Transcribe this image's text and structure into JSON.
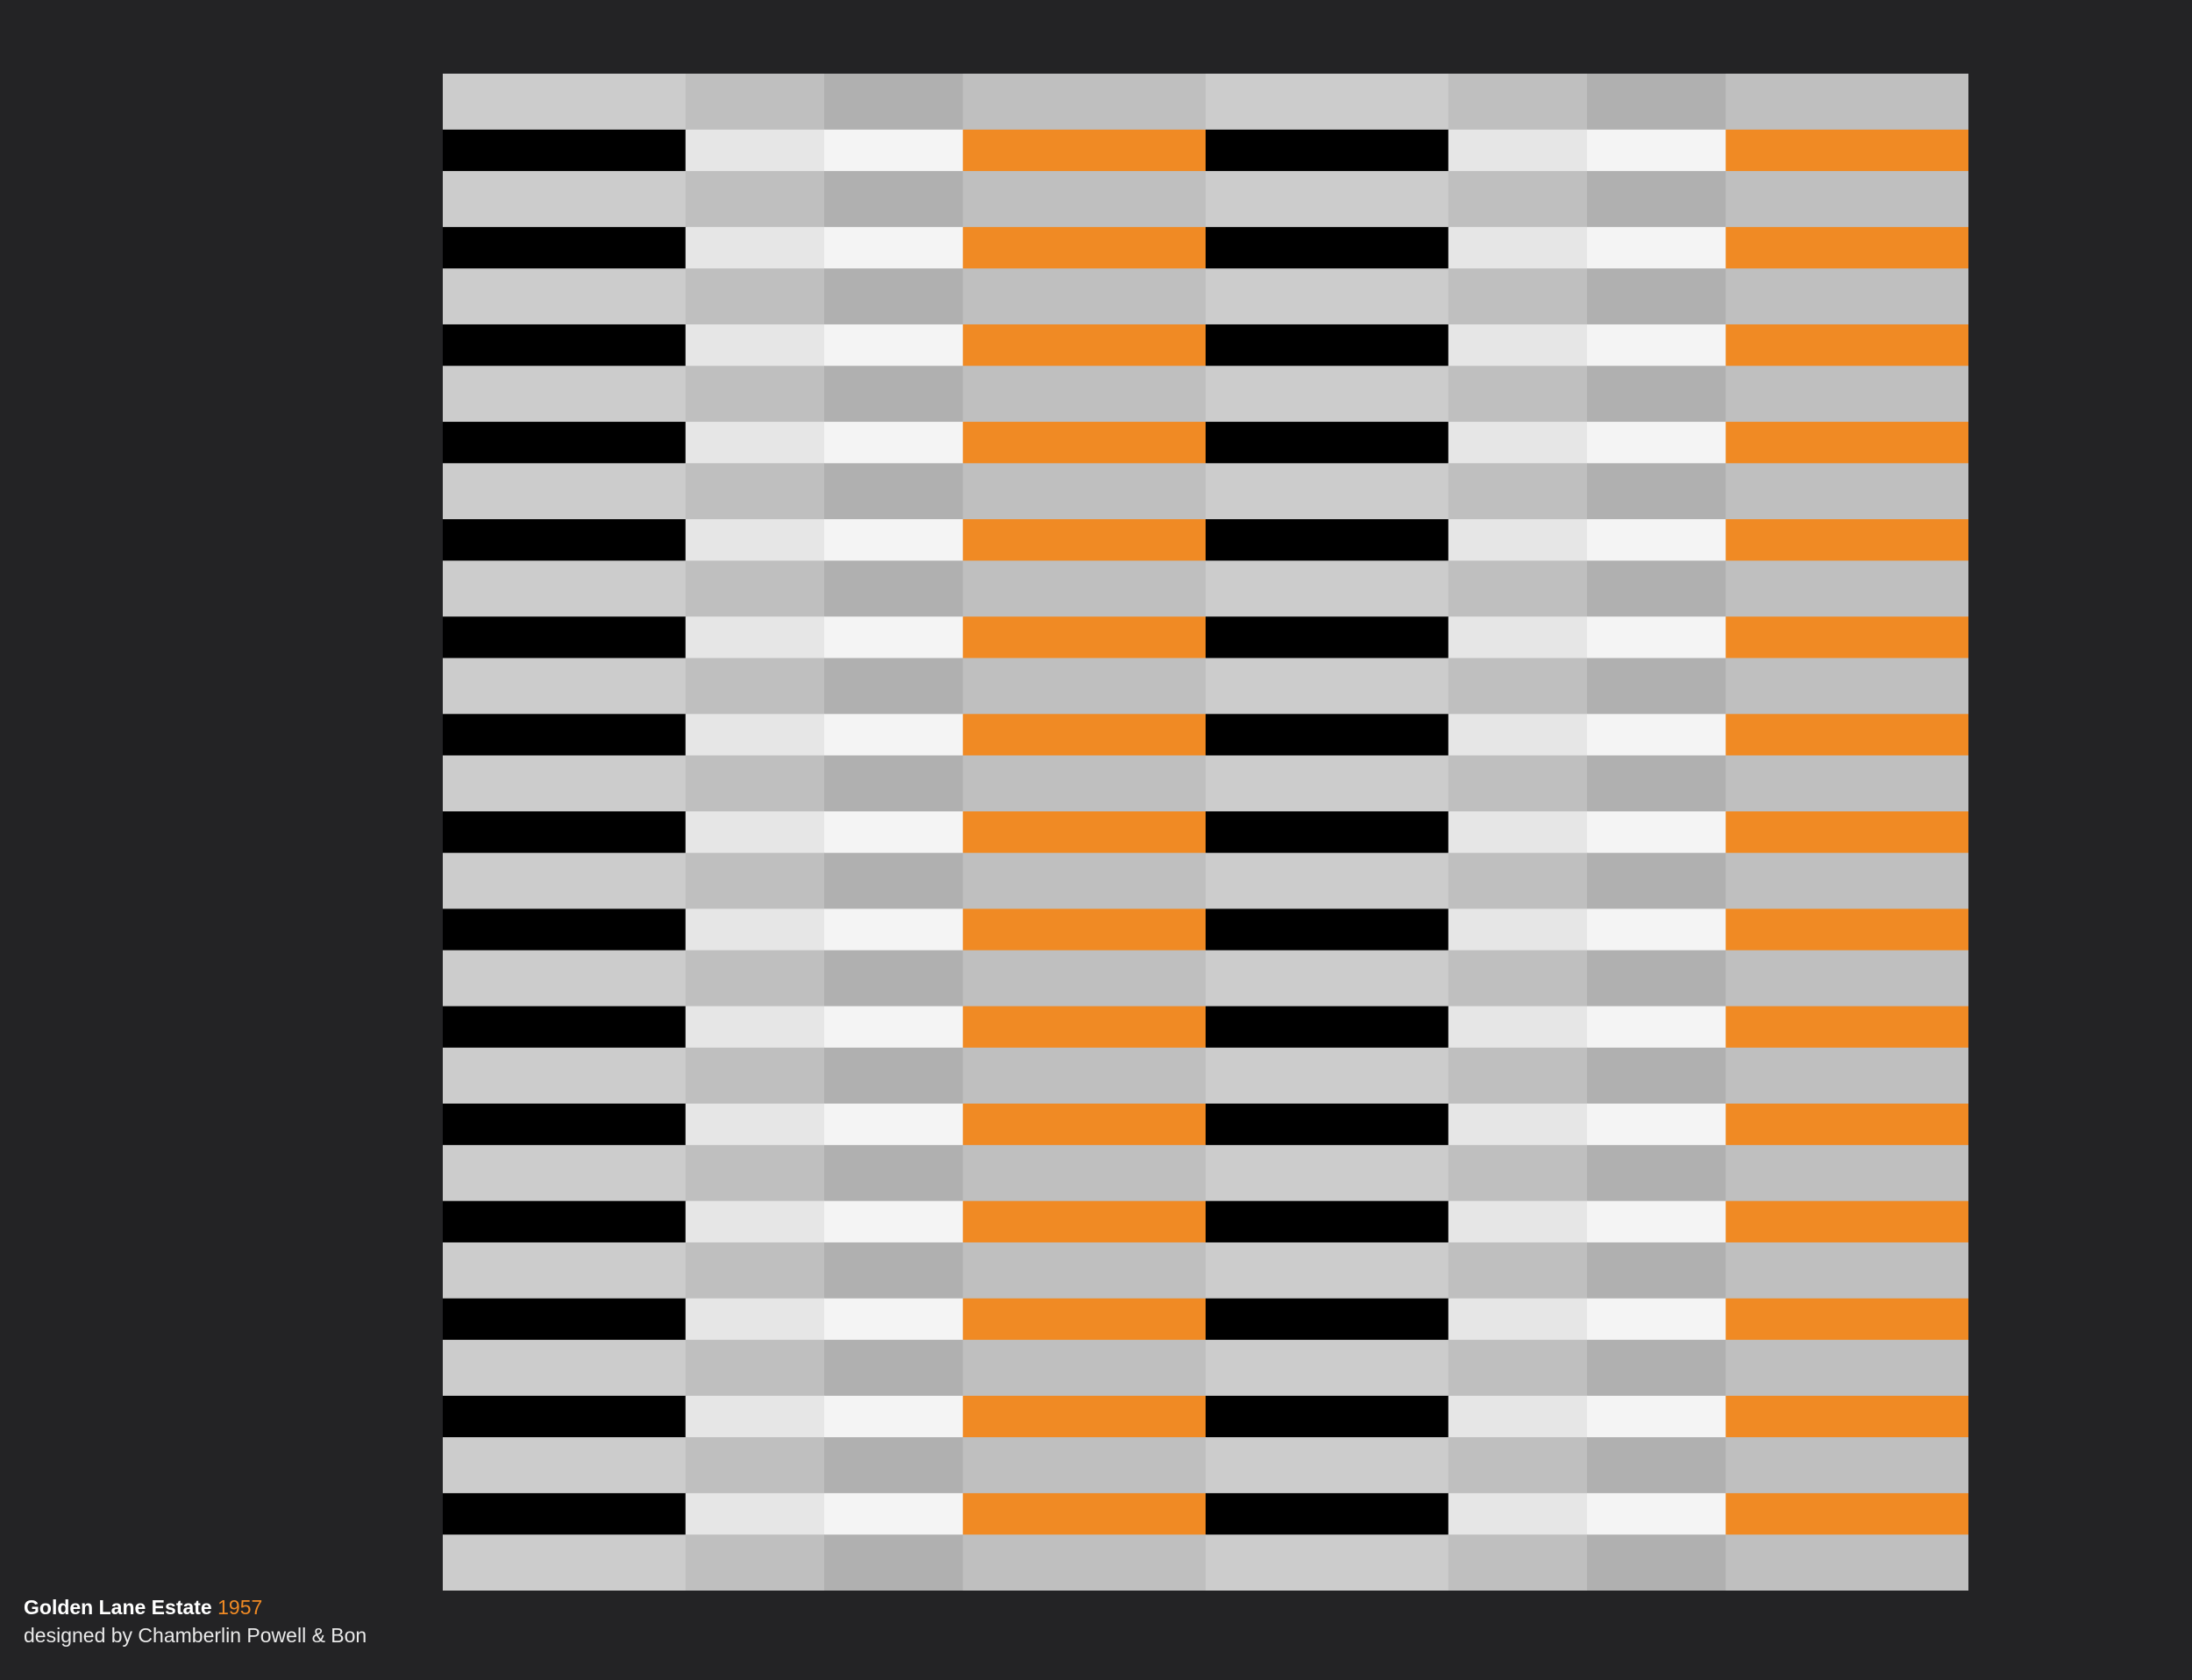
{
  "caption": {
    "title": "Golden Lane Estate",
    "year": "1957",
    "credit": "designed by Chamberlin Powell & Bon"
  },
  "pattern": {
    "rows": 31,
    "row_types": [
      "spandrel",
      "window"
    ],
    "column_width_ratios": [
      1.75,
      1,
      1,
      1.75,
      1.75,
      1,
      1,
      1.75
    ],
    "row_height_ratios": {
      "spandrel": 1.35,
      "window": 1
    },
    "palette": {
      "spandrel": [
        "#cccccc",
        "#bfbfbf",
        "#b0b0b0",
        "#bfbfbf",
        "#cccccc",
        "#bfbfbf",
        "#b0b0b0",
        "#bfbfbf"
      ],
      "window": [
        "#000000",
        "#e6e6e6",
        "#f4f4f4",
        "#f08a24",
        "#000000",
        "#e6e6e6",
        "#f4f4f4",
        "#f08a24"
      ]
    },
    "background": "#232325",
    "accent": "#f08a24"
  }
}
